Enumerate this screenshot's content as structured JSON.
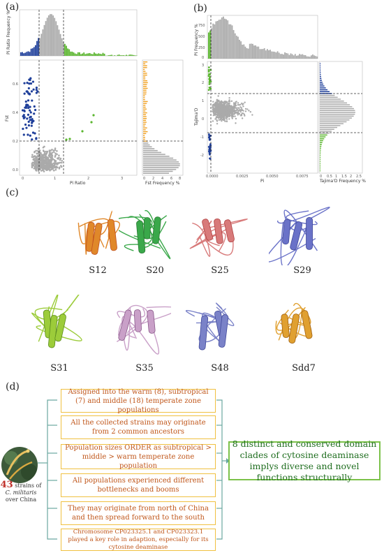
{
  "panels": {
    "a": "(a)",
    "b": "(b)",
    "c": "(c)",
    "d": "(d)"
  },
  "panel_a": {
    "top_ylabel": "Pi Ratio Frequency %",
    "main_xlabel": "Pi Ratio",
    "main_ylabel": "Fst",
    "side_xlabel": "Fst Frequency %",
    "main_yticks": [
      "0.6",
      "0.4",
      "0.2",
      "0.0"
    ],
    "main_xticks": [
      "0",
      "1",
      "2",
      "3"
    ],
    "side_xticks": [
      "0",
      "2",
      "4",
      "6",
      "8"
    ]
  },
  "panel_b": {
    "top_ylabel": "Pi Frequency %",
    "top_yticks": [
      "750",
      "500",
      "250",
      "0"
    ],
    "main_xlabel": "Pi",
    "main_ylabel": "Tajima'D",
    "side_xlabel": "Tajima'D Frequency %",
    "main_yticks": [
      "3",
      "2",
      "1",
      "0",
      "-1",
      "-2"
    ],
    "main_xticks": [
      "0.0000",
      "0.0025",
      "0.0050",
      "0.0075"
    ],
    "side_xticks": [
      "0",
      "0.5",
      "1",
      "1.5",
      "2",
      "2.5"
    ]
  },
  "proteins": [
    {
      "label": "S12",
      "color": "#e0882a",
      "accent": "#c05020"
    },
    {
      "label": "S20",
      "color": "#3aa84a",
      "accent": "#2c7a34"
    },
    {
      "label": "S25",
      "color": "#d87a7a",
      "accent": "#b04040"
    },
    {
      "label": "S29",
      "color": "#6a72c8",
      "accent": "#40489a"
    },
    {
      "label": "S31",
      "color": "#9ccc3a",
      "accent": "#5a8a1e"
    },
    {
      "label": "S35",
      "color": "#c9a0c8",
      "accent": "#8a5a8a"
    },
    {
      "label": "S48",
      "color": "#7a82c8",
      "accent": "#40489a"
    },
    {
      "label": "Sdd7",
      "color": "#e0a030",
      "accent": "#a06010"
    }
  ],
  "flow": {
    "boxes": [
      "Assigned into the warm (8), subtropical (7) and middle (18) temperate zone populations",
      "All the collected strains may originate from 2 common ancestors",
      "Population sizes ORDER as subtropical > middle > warm temperate zone population",
      "All populations experienced different bottlenecks and booms",
      "They may originate from north of China and then spread forward to the south",
      "Chromosome CP023325.1 and CP023323.1 played a key role in adaption, especially for its cytosine deaminase"
    ],
    "result": "8 distinct and conserved domain clades of cytosine deaminase implys diverse and novel functions structurally",
    "strain_count": "43",
    "strain_text_1": "strains of",
    "strain_species": "C. militaris",
    "strain_text_2": "over China"
  },
  "colors": {
    "blue": "#1f3f9a",
    "green": "#5ab52e",
    "orange": "#f0a020",
    "gray": "#aaaaaa"
  }
}
